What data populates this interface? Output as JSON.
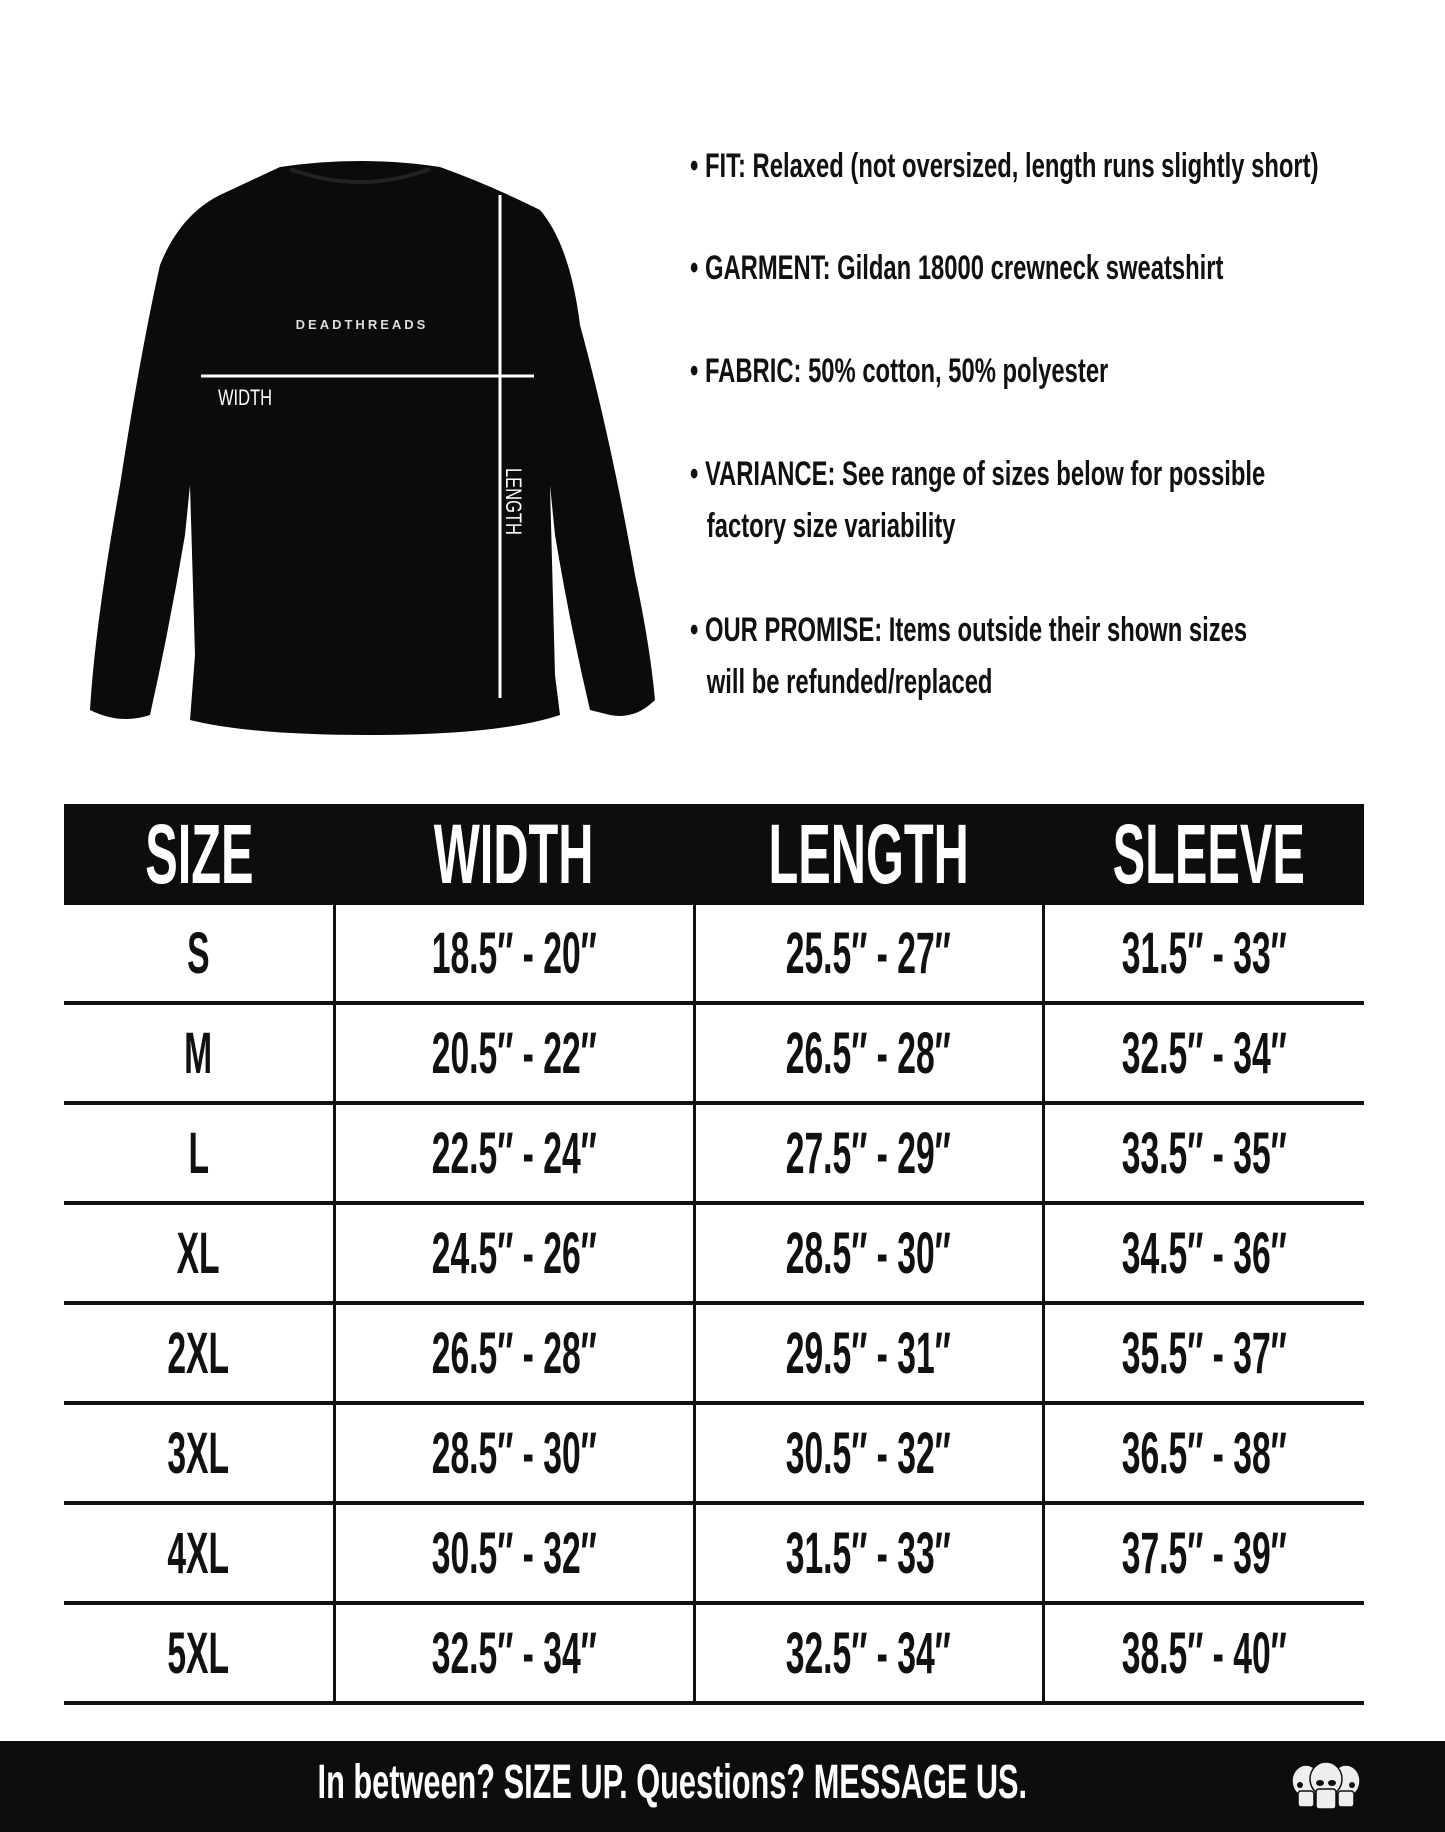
{
  "garment_image": {
    "brand_print": "DEADTHREADS",
    "width_label": "WIDTH",
    "length_label": "LENGTH",
    "shirt_color": "#0b0b0b"
  },
  "bullets": [
    {
      "line1": "• FIT: Relaxed (not oversized, length runs slightly short)"
    },
    {
      "line1": "• GARMENT: Gildan 18000 crewneck sweatshirt"
    },
    {
      "line1": "• FABRIC: 50% cotton, 50% polyester"
    },
    {
      "line1": "• VARIANCE: See range of sizes below for possible",
      "line2": "factory size variability"
    },
    {
      "line1": "• OUR PROMISE: Items outside their shown sizes",
      "line2": "will be refunded/replaced"
    }
  ],
  "size_table": {
    "headers": [
      "SIZE",
      "WIDTH",
      "LENGTH",
      "SLEEVE"
    ],
    "rows": [
      [
        "S",
        "18.5″ - 20″",
        "25.5″ - 27″",
        "31.5″ - 33″"
      ],
      [
        "M",
        "20.5″ - 22″",
        "26.5″ - 28″",
        "32.5″ - 34″"
      ],
      [
        "L",
        "22.5″ - 24″",
        "27.5″ - 29″",
        "33.5″ - 35″"
      ],
      [
        "XL",
        "24.5″ - 26″",
        "28.5″ - 30″",
        "34.5″ - 36″"
      ],
      [
        "2XL",
        "26.5″ - 28″",
        "29.5″ - 31″",
        "35.5″ - 37″"
      ],
      [
        "3XL",
        "28.5″ - 30″",
        "30.5″ - 32″",
        "36.5″ - 38″"
      ],
      [
        "4XL",
        "30.5″ - 32″",
        "31.5″ - 33″",
        "37.5″ - 39″"
      ],
      [
        "5XL",
        "32.5″ - 34″",
        "32.5″ - 34″",
        "38.5″ - 40″"
      ]
    ]
  },
  "footer": {
    "text": "In between? SIZE UP. Questions? MESSAGE US.",
    "logo_icon": "three-skulls-logo"
  }
}
